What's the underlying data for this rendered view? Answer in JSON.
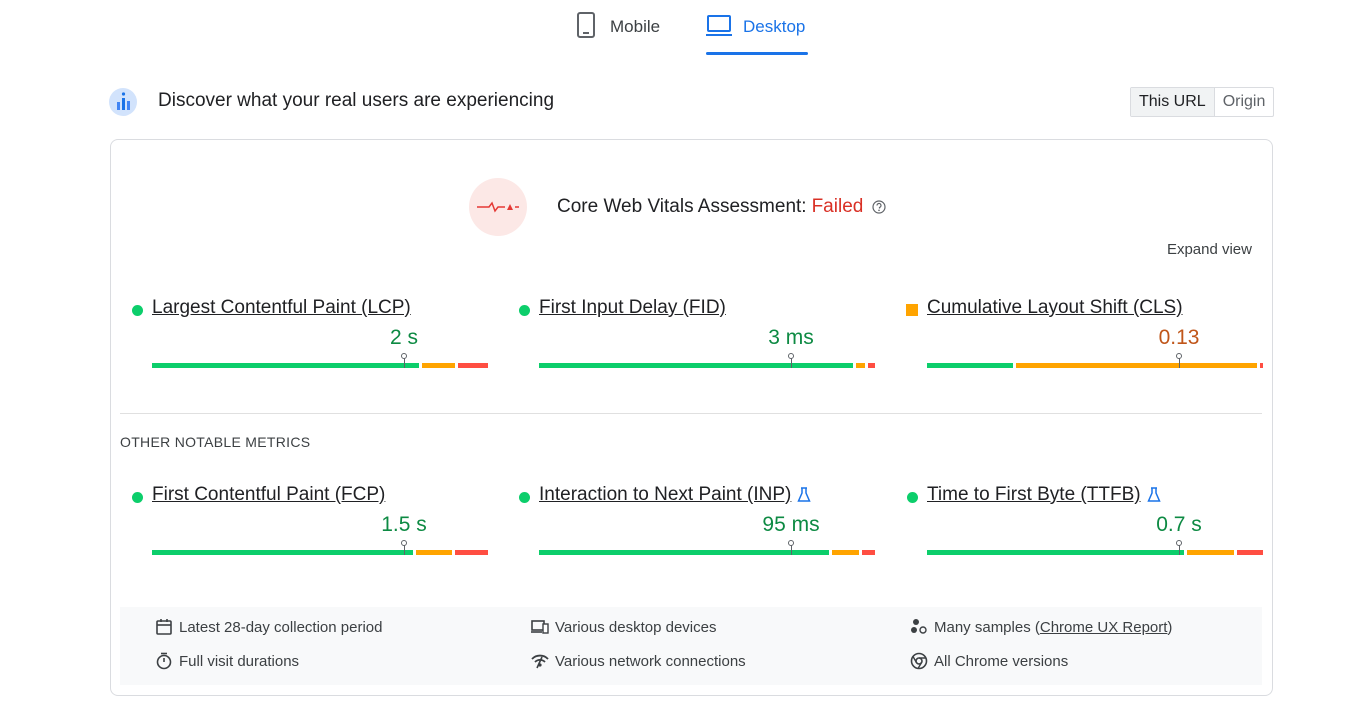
{
  "tabs": [
    {
      "label": "Mobile",
      "active": false
    },
    {
      "label": "Desktop",
      "active": true
    }
  ],
  "field_data": {
    "heading": "Discover what your real users are experiencing",
    "toggle": [
      "This URL",
      "Origin"
    ],
    "toggle_active": 0
  },
  "assessment": {
    "label": "Core Web Vitals Assessment:",
    "result": "Failed",
    "expand": "Expand view"
  },
  "core_metrics": [
    {
      "name": "Largest Contentful Paint (LCP)",
      "value": "2 s",
      "status": "good",
      "lab_badge": false,
      "distribution": [
        81,
        10,
        9
      ]
    },
    {
      "name": "First Input Delay (FID)",
      "value": "3 ms",
      "status": "good",
      "lab_badge": false,
      "distribution": [
        95,
        3,
        2
      ]
    },
    {
      "name": "Cumulative Layout Shift (CLS)",
      "value": "0.13",
      "status": "needs-improvement",
      "lab_badge": false,
      "distribution": [
        26,
        73,
        1
      ]
    }
  ],
  "other_heading": "OTHER NOTABLE METRICS",
  "other_metrics": [
    {
      "name": "First Contentful Paint (FCP)",
      "value": "1.5 s",
      "status": "good",
      "lab_badge": false,
      "distribution": [
        79,
        11,
        10
      ]
    },
    {
      "name": "Interaction to Next Paint (INP)",
      "value": "95 ms",
      "status": "good",
      "lab_badge": true,
      "distribution": [
        88,
        8,
        4
      ]
    },
    {
      "name": "Time to First Byte (TTFB)",
      "value": "0.7 s",
      "status": "good",
      "lab_badge": true,
      "distribution": [
        78,
        14,
        8
      ]
    }
  ],
  "footer": [
    {
      "text": "Latest 28-day collection period"
    },
    {
      "text": "Various desktop devices"
    },
    {
      "text": "Many samples (",
      "link": "Chrome UX Report",
      "after": ")"
    },
    {
      "text": "Full visit durations"
    },
    {
      "text": "Various network connections"
    },
    {
      "text": "All Chrome versions"
    }
  ]
}
